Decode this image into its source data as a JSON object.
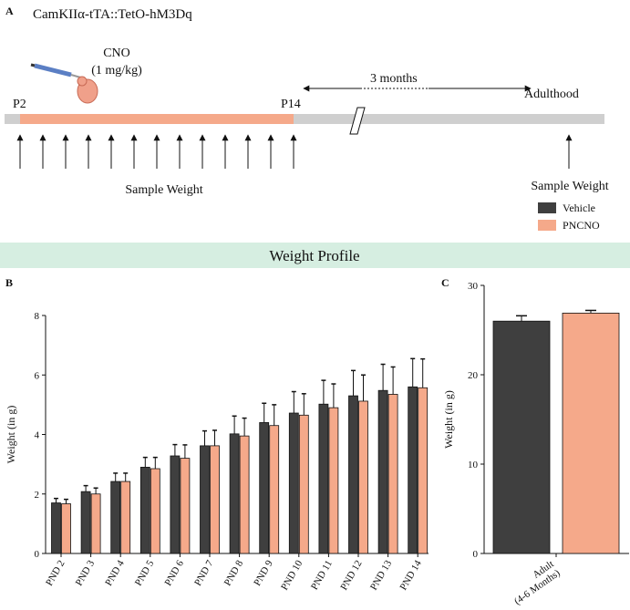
{
  "panel_a": {
    "label": "A",
    "title": "CamKIIα-tTA::TetO-hM3Dq",
    "drug": "CNO",
    "dose": "(1 mg/kg)",
    "start": "P2",
    "end": "P14",
    "gap": "3 months",
    "adult": "Adulthood",
    "sample_early": "Sample Weight",
    "sample_adult": "Sample Weight"
  },
  "banner": "Weight Profile",
  "chart_data": [
    {
      "panel": "B",
      "type": "bar",
      "ylabel": "Weight (in g)",
      "categories": [
        "PND 2",
        "PND 3",
        "PND 4",
        "PND 5",
        "PND 6",
        "PND 7",
        "PND 8",
        "PND 9",
        "PND 10",
        "PND 11",
        "PND 12",
        "PND 13",
        "PND 14"
      ],
      "ylim": [
        0,
        8
      ],
      "yticks": [
        0,
        2,
        4,
        6,
        8
      ],
      "series": [
        {
          "name": "Vehicle",
          "color": "#3f3f3f",
          "values": [
            1.7,
            2.08,
            2.42,
            2.9,
            3.28,
            3.62,
            4.02,
            4.4,
            4.72,
            5.02,
            5.3,
            5.48,
            5.6
          ],
          "errors": [
            0.15,
            0.2,
            0.28,
            0.33,
            0.38,
            0.5,
            0.6,
            0.65,
            0.72,
            0.8,
            0.85,
            0.88,
            0.95
          ]
        },
        {
          "name": "PNCNO",
          "color": "#f5a98a",
          "values": [
            1.67,
            2.0,
            2.42,
            2.85,
            3.2,
            3.62,
            3.95,
            4.3,
            4.65,
            4.9,
            5.12,
            5.35,
            5.57
          ],
          "errors": [
            0.15,
            0.2,
            0.28,
            0.38,
            0.45,
            0.52,
            0.6,
            0.7,
            0.72,
            0.8,
            0.88,
            0.92,
            0.97
          ]
        }
      ]
    },
    {
      "panel": "C",
      "type": "bar",
      "ylabel": "Weight (in g)",
      "categories": [
        "Adult\n(4-6 Months)"
      ],
      "ylim": [
        0,
        30
      ],
      "yticks": [
        0,
        10,
        20,
        30
      ],
      "series": [
        {
          "name": "Vehicle",
          "color": "#3f3f3f",
          "values": [
            26.0
          ],
          "errors": [
            0.6
          ]
        },
        {
          "name": "PNCNO",
          "color": "#f5a98a",
          "values": [
            26.9
          ],
          "errors": [
            0.3
          ]
        }
      ]
    }
  ]
}
